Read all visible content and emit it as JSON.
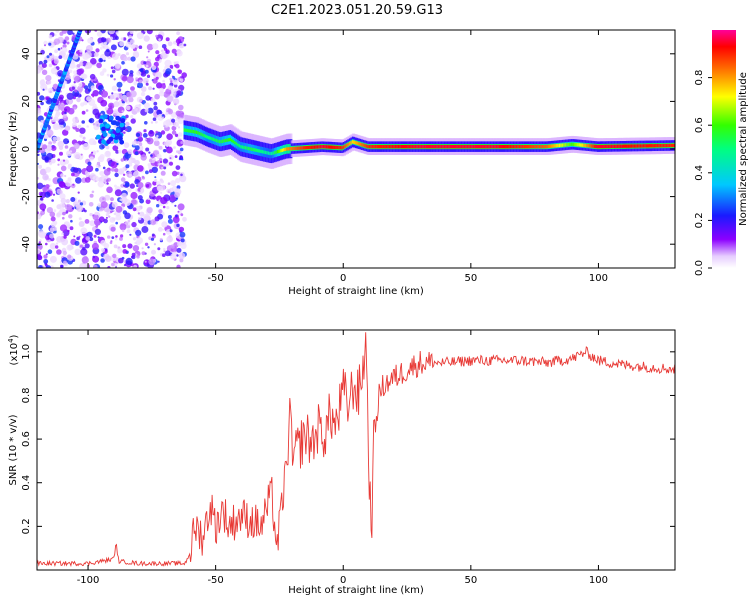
{
  "figure_title": "C2E1.2023.051.20.59.G13",
  "colorbar": {
    "label": "Normalized spectral amplitude",
    "ticks": [
      "0.0",
      "0.2",
      "0.4",
      "0.6",
      "0.8"
    ],
    "tick_values": [
      0.0,
      0.2,
      0.4,
      0.6,
      0.8
    ],
    "range": [
      0,
      1
    ]
  },
  "chart_data": [
    {
      "type": "heatmap",
      "title": "",
      "xlabel": "Height of straight line (km)",
      "ylabel": "Frequency (Hz)",
      "xlim": [
        -120,
        130
      ],
      "ylim": [
        -50,
        50
      ],
      "xticks": [
        -100,
        -50,
        0,
        50,
        100
      ],
      "yticks": [
        -40,
        -20,
        0,
        20,
        40
      ],
      "xtick_labels": [
        "-100",
        "-50",
        "0",
        "50",
        "100"
      ],
      "ytick_labels": [
        "-40",
        "-20",
        "0",
        "20",
        "40"
      ],
      "colormap": "rainbow (white-purple-blue-cyan-green-yellow-red-magenta)",
      "features": {
        "noise_band_x": [
          -120,
          -62
        ],
        "diagonal_streak": {
          "x": [
            -120,
            -103
          ],
          "freq": [
            0,
            50
          ]
        },
        "dominant_line": {
          "x": [
            -62,
            130
          ],
          "freq": [
            8,
            1
          ]
        }
      },
      "ridge_points": [
        {
          "x": -62,
          "freq": 8,
          "amp": 0.55
        },
        {
          "x": -57,
          "freq": 7,
          "amp": 0.6
        },
        {
          "x": -53,
          "freq": 5,
          "amp": 0.5
        },
        {
          "x": -48,
          "freq": 3,
          "amp": 0.55
        },
        {
          "x": -44,
          "freq": 4,
          "amp": 0.6
        },
        {
          "x": -40,
          "freq": 1,
          "amp": 0.5
        },
        {
          "x": -36,
          "freq": 0,
          "amp": 0.55
        },
        {
          "x": -32,
          "freq": -1,
          "amp": 0.5
        },
        {
          "x": -28,
          "freq": -2,
          "amp": 0.45
        },
        {
          "x": -22,
          "freq": 0,
          "amp": 0.8
        },
        {
          "x": -15,
          "freq": 0.5,
          "amp": 0.9
        },
        {
          "x": -8,
          "freq": 1,
          "amp": 0.95
        },
        {
          "x": 0,
          "freq": 0.5,
          "amp": 0.9
        },
        {
          "x": 4,
          "freq": 3,
          "amp": 0.75
        },
        {
          "x": 10,
          "freq": 1,
          "amp": 0.9
        },
        {
          "x": 30,
          "freq": 1,
          "amp": 0.95
        },
        {
          "x": 60,
          "freq": 1,
          "amp": 0.95
        },
        {
          "x": 80,
          "freq": 1,
          "amp": 0.85
        },
        {
          "x": 90,
          "freq": 2,
          "amp": 0.6
        },
        {
          "x": 100,
          "freq": 1,
          "amp": 0.95
        },
        {
          "x": 130,
          "freq": 1.5,
          "amp": 0.9
        }
      ]
    },
    {
      "type": "line",
      "title": "",
      "xlabel": "Height of straight line (km)",
      "ylabel": "SNR (10 * v/v)",
      "y_multiplier_label": "(x10",
      "y_multiplier_exp": "4",
      "y_multiplier_close": ")",
      "xlim": [
        -120,
        130
      ],
      "ylim": [
        0,
        1.1
      ],
      "xticks": [
        -100,
        -50,
        0,
        50,
        100
      ],
      "yticks": [
        0.2,
        0.4,
        0.6,
        0.8,
        1.0
      ],
      "xtick_labels": [
        "-100",
        "-50",
        "0",
        "50",
        "100"
      ],
      "ytick_labels": [
        "0.2",
        "0.4",
        "0.6",
        "0.8",
        "1.0"
      ],
      "series": [
        {
          "color": "#e83a36",
          "x": [
            -120,
            -100,
            -90,
            -89,
            -88,
            -80,
            -70,
            -62,
            -60,
            -58,
            -55,
            -52,
            -50,
            -47,
            -45,
            -40,
            -35,
            -32,
            -30,
            -28,
            -26,
            -24,
            -22,
            -21,
            -20,
            -18,
            -15,
            -12,
            -10,
            -7,
            -5,
            -3,
            0,
            2,
            4,
            6,
            8,
            9,
            10,
            11,
            12,
            14,
            16,
            20,
            25,
            30,
            35,
            40,
            50,
            60,
            70,
            80,
            90,
            95,
            100,
            110,
            120,
            130
          ],
          "y": [
            0.03,
            0.03,
            0.05,
            0.12,
            0.04,
            0.03,
            0.03,
            0.03,
            0.08,
            0.2,
            0.15,
            0.3,
            0.2,
            0.28,
            0.2,
            0.25,
            0.22,
            0.2,
            0.28,
            0.35,
            0.1,
            0.3,
            0.5,
            0.75,
            0.5,
            0.55,
            0.62,
            0.58,
            0.65,
            0.62,
            0.72,
            0.65,
            0.82,
            0.75,
            0.85,
            0.8,
            0.95,
            1.05,
            0.5,
            0.15,
            0.6,
            0.8,
            0.85,
            0.88,
            0.92,
            0.95,
            0.95,
            0.95,
            0.96,
            0.96,
            0.96,
            0.95,
            0.97,
            1.0,
            0.96,
            0.94,
            0.93,
            0.92
          ]
        }
      ]
    }
  ]
}
